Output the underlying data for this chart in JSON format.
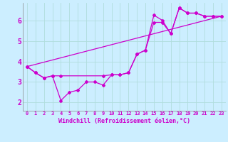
{
  "background_color": "#cceeff",
  "grid_color": "#aadddd",
  "line_color": "#cc00cc",
  "xlabel": "Windchill (Refroidissement éolien,°C)",
  "xlabel_color": "#cc00cc",
  "ylabel_ticks": [
    2,
    3,
    4,
    5,
    6
  ],
  "xlim": [
    -0.5,
    23.5
  ],
  "ylim": [
    1.6,
    6.85
  ],
  "line1_x": [
    0,
    1,
    2,
    3,
    4,
    5,
    6,
    7,
    8,
    9,
    10,
    11,
    12,
    13,
    14,
    15,
    16,
    17,
    18,
    19,
    20,
    21,
    22,
    23
  ],
  "line1_y": [
    3.75,
    3.45,
    3.2,
    3.3,
    2.1,
    2.5,
    2.6,
    3.0,
    3.0,
    2.85,
    3.35,
    3.35,
    3.45,
    4.35,
    4.55,
    6.25,
    6.0,
    5.35,
    6.6,
    6.35,
    6.35,
    6.2,
    6.2,
    6.2
  ],
  "line2_x": [
    0,
    1,
    2,
    3,
    4,
    9,
    10,
    11,
    12,
    13,
    14,
    15,
    16,
    17,
    18,
    19,
    20,
    21,
    22,
    23
  ],
  "line2_y": [
    3.75,
    3.45,
    3.2,
    3.3,
    3.3,
    3.3,
    3.35,
    3.35,
    3.45,
    4.35,
    4.55,
    5.9,
    5.9,
    5.35,
    6.6,
    6.35,
    6.35,
    6.2,
    6.2,
    6.2
  ],
  "line3_x": [
    0,
    23
  ],
  "line3_y": [
    3.75,
    6.2
  ],
  "xtick_labels": [
    "0",
    "1",
    "2",
    "3",
    "4",
    "5",
    "6",
    "7",
    "8",
    "9",
    "10",
    "11",
    "12",
    "13",
    "14",
    "15",
    "16",
    "17",
    "18",
    "19",
    "20",
    "21",
    "22",
    "23"
  ]
}
